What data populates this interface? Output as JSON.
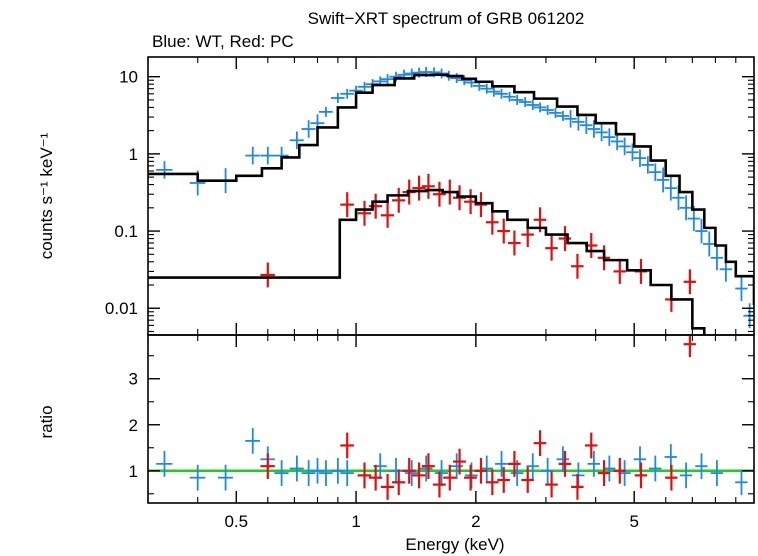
{
  "chart_data": {
    "type": "scatter",
    "title": "Swift−XRT spectrum of GRB 061202",
    "subtitle": "Blue: WT, Red: PC",
    "xlabel": "Energy (keV)",
    "x_scale": "log",
    "xlim": [
      0.3,
      10
    ],
    "x_ticks": [
      "0.5",
      "1",
      "2",
      "5"
    ],
    "colors": {
      "wt": "#1e88e5",
      "pc": "#e01010",
      "model": "#000000",
      "unity": "#22cc22"
    },
    "panels": [
      {
        "name": "spectrum",
        "ylabel": "counts s⁻¹ keV⁻¹",
        "y_scale": "log",
        "ylim": [
          0.0045,
          18
        ],
        "y_ticks": [
          "10",
          "1",
          "0.1",
          "0.01"
        ],
        "series": [
          {
            "name": "WT",
            "data": [
              [
                0.33,
                0.62
              ],
              [
                0.4,
                0.42
              ],
              [
                0.47,
                0.45
              ],
              [
                0.55,
                0.95
              ],
              [
                0.6,
                0.95
              ],
              [
                0.65,
                0.95
              ],
              [
                0.71,
                1.5
              ],
              [
                0.76,
                2.1
              ],
              [
                0.8,
                2.5
              ],
              [
                0.84,
                3.5
              ],
              [
                0.9,
                5.3
              ],
              [
                0.95,
                6.0
              ],
              [
                1.0,
                6.6
              ],
              [
                1.05,
                7.4
              ],
              [
                1.1,
                8.0
              ],
              [
                1.15,
                8.7
              ],
              [
                1.2,
                9.3
              ],
              [
                1.26,
                10.0
              ],
              [
                1.32,
                10.6
              ],
              [
                1.38,
                11.0
              ],
              [
                1.44,
                11.3
              ],
              [
                1.5,
                11.5
              ],
              [
                1.57,
                11.4
              ],
              [
                1.64,
                11.0
              ],
              [
                1.71,
                10.3
              ],
              [
                1.79,
                9.6
              ],
              [
                1.87,
                9.0
              ],
              [
                1.95,
                8.4
              ],
              [
                2.04,
                7.6
              ],
              [
                2.13,
                7.0
              ],
              [
                2.22,
                6.4
              ],
              [
                2.32,
                6.0
              ],
              [
                2.43,
                5.5
              ],
              [
                2.54,
                5.0
              ],
              [
                2.66,
                4.7
              ],
              [
                2.78,
                4.3
              ],
              [
                2.9,
                4.0
              ],
              [
                3.03,
                3.7
              ],
              [
                3.17,
                3.4
              ],
              [
                3.31,
                3.1
              ],
              [
                3.46,
                2.85
              ],
              [
                3.62,
                2.6
              ],
              [
                3.79,
                2.35
              ],
              [
                3.96,
                2.1
              ],
              [
                4.14,
                1.9
              ],
              [
                4.33,
                1.65
              ],
              [
                4.53,
                1.45
              ],
              [
                4.73,
                1.25
              ],
              [
                4.95,
                1.05
              ],
              [
                5.17,
                0.88
              ],
              [
                5.41,
                0.72
              ],
              [
                5.65,
                0.58
              ],
              [
                5.91,
                0.46
              ],
              [
                6.18,
                0.36
              ],
              [
                6.46,
                0.27
              ],
              [
                6.75,
                0.2
              ],
              [
                7.06,
                0.145
              ],
              [
                7.38,
                0.1
              ],
              [
                7.72,
                0.068
              ],
              [
                8.07,
                0.045
              ],
              [
                8.5,
                0.032
              ],
              [
                9.3,
                0.018
              ],
              [
                9.75,
                0.008
              ]
            ]
          },
          {
            "name": "PC",
            "data": [
              [
                0.6,
                0.027
              ],
              [
                0.95,
                0.22
              ],
              [
                1.05,
                0.17
              ],
              [
                1.12,
                0.21
              ],
              [
                1.2,
                0.16
              ],
              [
                1.28,
                0.25
              ],
              [
                1.36,
                0.32
              ],
              [
                1.44,
                0.36
              ],
              [
                1.52,
                0.38
              ],
              [
                1.62,
                0.3
              ],
              [
                1.72,
                0.32
              ],
              [
                1.82,
                0.27
              ],
              [
                1.94,
                0.24
              ],
              [
                2.06,
                0.22
              ],
              [
                2.2,
                0.13
              ],
              [
                2.35,
                0.1
              ],
              [
                2.5,
                0.07
              ],
              [
                2.7,
                0.09
              ],
              [
                2.9,
                0.14
              ],
              [
                3.1,
                0.06
              ],
              [
                3.35,
                0.08
              ],
              [
                3.6,
                0.035
              ],
              [
                3.9,
                0.065
              ],
              [
                4.2,
                0.045
              ],
              [
                4.6,
                0.03
              ],
              [
                5.2,
                0.03
              ],
              [
                6.2,
                0.013
              ],
              [
                6.9,
                0.022
              ]
            ]
          },
          {
            "name": "Model WT",
            "data": [
              [
                0.3,
                0.55
              ],
              [
                0.4,
                0.45
              ],
              [
                0.5,
                0.52
              ],
              [
                0.58,
                0.65
              ],
              [
                0.65,
                0.9
              ],
              [
                0.72,
                1.3
              ],
              [
                0.8,
                2.2
              ],
              [
                0.9,
                4.0
              ],
              [
                1.0,
                6.2
              ],
              [
                1.1,
                7.8
              ],
              [
                1.25,
                9.5
              ],
              [
                1.4,
                10.5
              ],
              [
                1.55,
                10.6
              ],
              [
                1.7,
                10.2
              ],
              [
                1.85,
                9.4
              ],
              [
                2.0,
                8.6
              ],
              [
                2.2,
                7.5
              ],
              [
                2.5,
                6.3
              ],
              [
                2.8,
                5.2
              ],
              [
                3.2,
                4.1
              ],
              [
                3.6,
                3.2
              ],
              [
                4.0,
                2.5
              ],
              [
                4.5,
                1.8
              ],
              [
                5.0,
                1.25
              ],
              [
                5.5,
                0.82
              ],
              [
                6.0,
                0.52
              ],
              [
                6.5,
                0.32
              ],
              [
                7.0,
                0.19
              ],
              [
                7.5,
                0.11
              ],
              [
                8.0,
                0.065
              ],
              [
                8.5,
                0.04
              ],
              [
                9.0,
                0.026
              ],
              [
                10.0,
                0.011
              ]
            ]
          },
          {
            "name": "Model PC",
            "data": [
              [
                0.3,
                0.025
              ],
              [
                0.6,
                0.025
              ],
              [
                0.9,
                0.025
              ],
              [
                0.91,
                0.14
              ],
              [
                1.0,
                0.19
              ],
              [
                1.1,
                0.24
              ],
              [
                1.2,
                0.29
              ],
              [
                1.35,
                0.33
              ],
              [
                1.5,
                0.34
              ],
              [
                1.65,
                0.32
              ],
              [
                1.8,
                0.28
              ],
              [
                2.0,
                0.23
              ],
              [
                2.2,
                0.18
              ],
              [
                2.4,
                0.14
              ],
              [
                2.7,
                0.11
              ],
              [
                3.0,
                0.09
              ],
              [
                3.4,
                0.07
              ],
              [
                3.8,
                0.055
              ],
              [
                4.2,
                0.042
              ],
              [
                4.8,
                0.031
              ],
              [
                5.5,
                0.02
              ],
              [
                6.2,
                0.013
              ],
              [
                7.0,
                0.0055
              ],
              [
                7.5,
                0.0045
              ]
            ]
          }
        ]
      },
      {
        "name": "ratio",
        "ylabel": "ratio",
        "y_scale": "linear",
        "ylim": [
          0.3,
          3.95
        ],
        "y_ticks": [
          "1",
          "2",
          "3"
        ],
        "reference_line": 1,
        "series": [
          {
            "name": "WT",
            "data": [
              [
                0.33,
                1.15
              ],
              [
                0.4,
                0.85
              ],
              [
                0.47,
                0.85
              ],
              [
                0.55,
                1.65
              ],
              [
                0.6,
                1.25
              ],
              [
                0.65,
                0.95
              ],
              [
                0.71,
                1.05
              ],
              [
                0.76,
                0.95
              ],
              [
                0.8,
                1.0
              ],
              [
                0.84,
                0.95
              ],
              [
                0.9,
                1.0
              ],
              [
                0.95,
                0.95
              ],
              [
                1.05,
                0.9
              ],
              [
                1.15,
                1.1
              ],
              [
                1.26,
                1.0
              ],
              [
                1.38,
                0.95
              ],
              [
                1.5,
                1.05
              ],
              [
                1.64,
                0.95
              ],
              [
                1.79,
                1.1
              ],
              [
                1.95,
                0.9
              ],
              [
                2.13,
                1.05
              ],
              [
                2.32,
                1.15
              ],
              [
                2.54,
                0.95
              ],
              [
                2.78,
                1.1
              ],
              [
                3.03,
                1.0
              ],
              [
                3.31,
                1.25
              ],
              [
                3.62,
                0.9
              ],
              [
                3.96,
                1.15
              ],
              [
                4.33,
                1.05
              ],
              [
                4.73,
                0.95
              ],
              [
                5.17,
                1.25
              ],
              [
                5.65,
                1.05
              ],
              [
                6.18,
                1.3
              ],
              [
                6.75,
                0.9
              ],
              [
                7.38,
                1.1
              ],
              [
                8.07,
                0.95
              ],
              [
                9.3,
                0.75
              ]
            ]
          },
          {
            "name": "PC",
            "data": [
              [
                0.6,
                1.1
              ],
              [
                0.95,
                1.55
              ],
              [
                1.05,
                0.9
              ],
              [
                1.12,
                0.85
              ],
              [
                1.2,
                0.65
              ],
              [
                1.28,
                0.75
              ],
              [
                1.36,
                1.0
              ],
              [
                1.44,
                0.9
              ],
              [
                1.52,
                1.1
              ],
              [
                1.62,
                0.7
              ],
              [
                1.72,
                0.85
              ],
              [
                1.82,
                1.2
              ],
              [
                1.94,
                0.85
              ],
              [
                2.06,
                1.0
              ],
              [
                2.2,
                0.75
              ],
              [
                2.35,
                0.8
              ],
              [
                2.5,
                1.15
              ],
              [
                2.7,
                0.8
              ],
              [
                2.9,
                1.6
              ],
              [
                3.1,
                0.7
              ],
              [
                3.35,
                1.15
              ],
              [
                3.6,
                0.65
              ],
              [
                3.9,
                1.55
              ],
              [
                4.2,
                0.95
              ],
              [
                4.6,
                1.0
              ],
              [
                5.2,
                0.9
              ],
              [
                6.2,
                0.85
              ],
              [
                6.9,
                3.75
              ]
            ]
          }
        ]
      }
    ]
  }
}
